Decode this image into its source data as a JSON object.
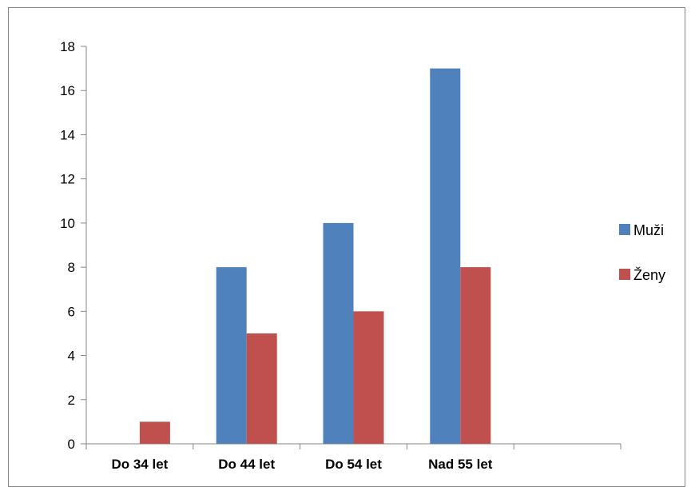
{
  "chart_data": {
    "type": "bar",
    "categories": [
      "Do 34 let",
      "Do 44 let",
      "Do 54 let",
      "Nad 55 let",
      ""
    ],
    "series": [
      {
        "name": "Muži",
        "color": "#4F81BD",
        "values": [
          0,
          8,
          10,
          17,
          0
        ]
      },
      {
        "name": "Ženy",
        "color": "#C0504D",
        "values": [
          1,
          5,
          6,
          8,
          0
        ]
      }
    ],
    "ylim": [
      0,
      18
    ],
    "yticks": [
      0,
      2,
      4,
      6,
      8,
      10,
      12,
      14,
      16,
      18
    ],
    "grid": false,
    "legend": "right"
  }
}
